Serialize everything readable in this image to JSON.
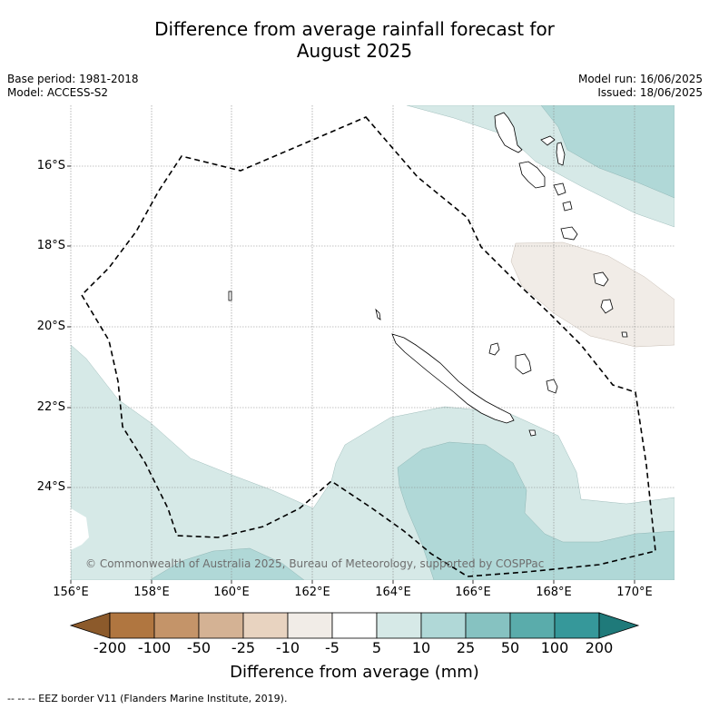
{
  "title": {
    "line1": "Difference from average rainfall forecast for",
    "line2": "August 2025"
  },
  "meta_left": {
    "base_period": "Base period: 1981-2018",
    "model": "Model: ACCESS-S2"
  },
  "meta_right": {
    "model_run": "Model run: 16/06/2025",
    "issued": "Issued: 18/06/2025"
  },
  "map": {
    "lat_labels": [
      "16°S",
      "18°S",
      "20°S",
      "22°S",
      "24°S"
    ],
    "lon_labels": [
      "156°E",
      "158°E",
      "160°E",
      "162°E",
      "164°E",
      "166°E",
      "168°E",
      "170°E"
    ],
    "copyright": "© Commonwealth of Australia 2025, Bureau of Meteorology, supported by COSPPac",
    "colors": {
      "land_outline": "#000000",
      "eez_border": "#000000",
      "grid": "#888888"
    }
  },
  "colorbar": {
    "tick_labels": [
      "-200",
      "-100",
      "-50",
      "-25",
      "-10",
      "-5",
      "5",
      "10",
      "25",
      "50",
      "100",
      "200"
    ],
    "colors": [
      "#8c5a2b",
      "#b07640",
      "#c49469",
      "#d4b294",
      "#e8d3c0",
      "#f1ece7",
      "#ffffff",
      "#d6e9e7",
      "#b0d8d7",
      "#86c2c1",
      "#5aacab",
      "#36989a",
      "#1f7a7a"
    ],
    "title": "Difference from average (mm)"
  },
  "footer": "--  --  -- EEZ border V11 (Flanders Marine Institute, 2019)."
}
